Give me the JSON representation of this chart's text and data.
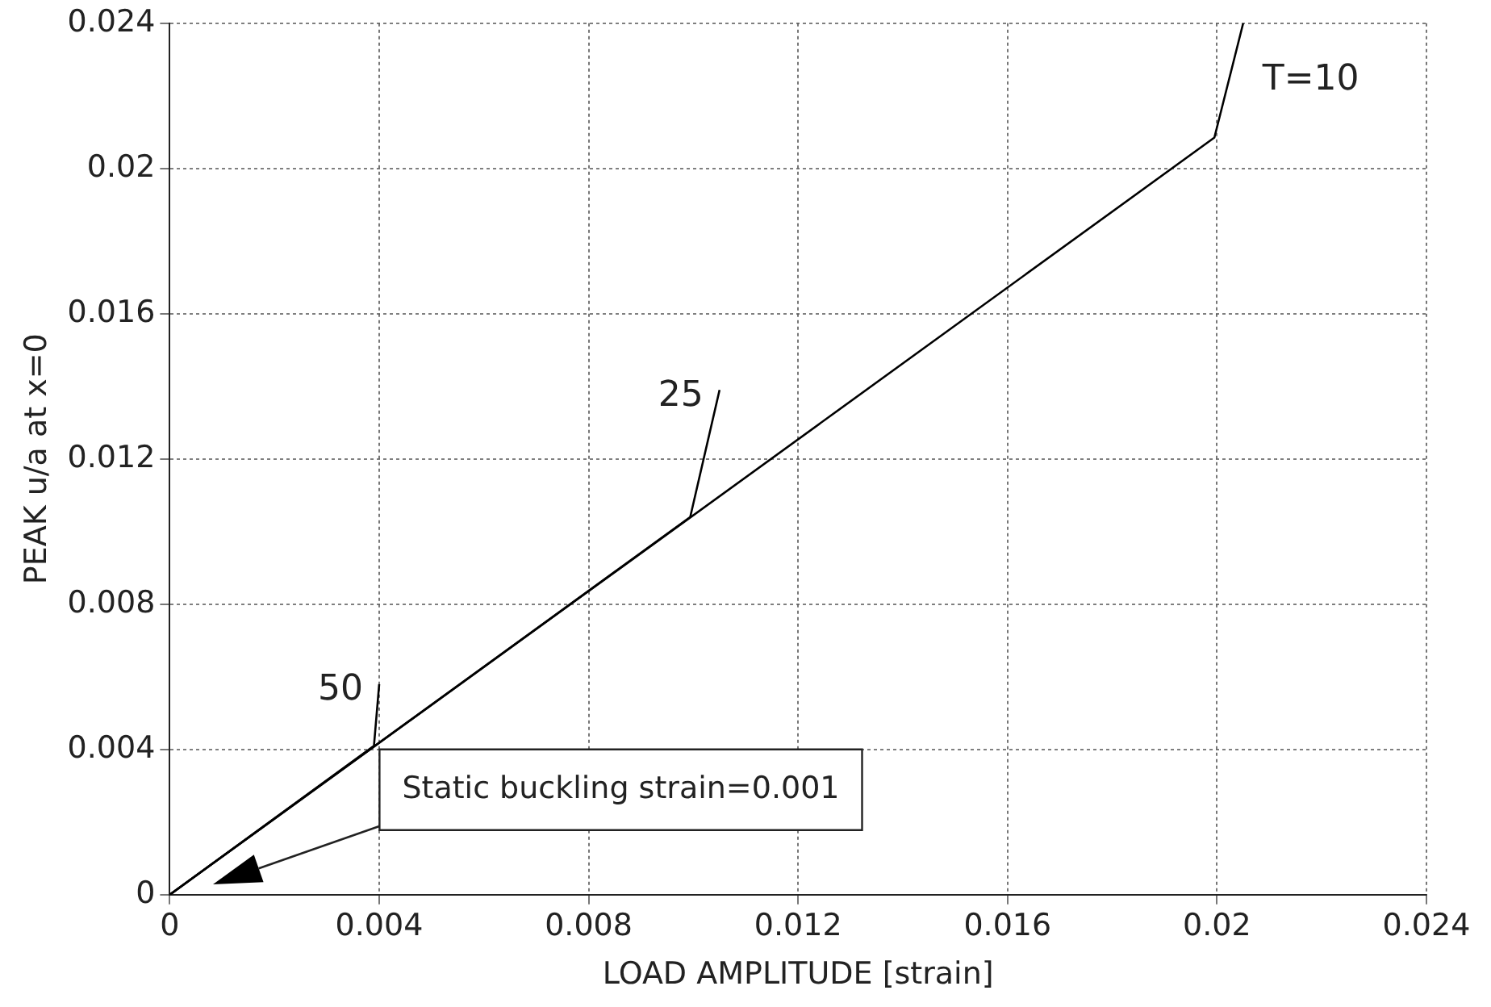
{
  "chart_data": {
    "type": "line",
    "xlabel": "LOAD AMPLITUDE [strain]",
    "ylabel": "PEAK u/a at x=0",
    "xlim": [
      0,
      0.024
    ],
    "xticks": [
      0,
      0.004,
      0.008,
      0.012,
      0.016,
      0.02,
      0.024
    ],
    "ylim": [
      0,
      0.024
    ],
    "yticks": [
      0,
      0.004,
      0.008,
      0.012,
      0.016,
      0.02,
      0.024
    ],
    "grid": true,
    "legend": false,
    "marker": "none",
    "line_style": "solid",
    "series": [
      {
        "name": "T=10",
        "color": "#000000",
        "x": [
          0,
          0.01995,
          0.0205
        ],
        "values": [
          0,
          0.02085,
          0.024
        ]
      },
      {
        "name": "25",
        "color": "#000000",
        "x": [
          0,
          0.00994,
          0.0105
        ],
        "values": [
          0,
          0.0104,
          0.0139
        ]
      },
      {
        "name": "50",
        "color": "#000000",
        "x": [
          0,
          0.0039,
          0.004
        ],
        "values": [
          0,
          0.0041,
          0.0058
        ]
      }
    ],
    "annotations": [
      "Static buckling strain=0.001"
    ]
  }
}
